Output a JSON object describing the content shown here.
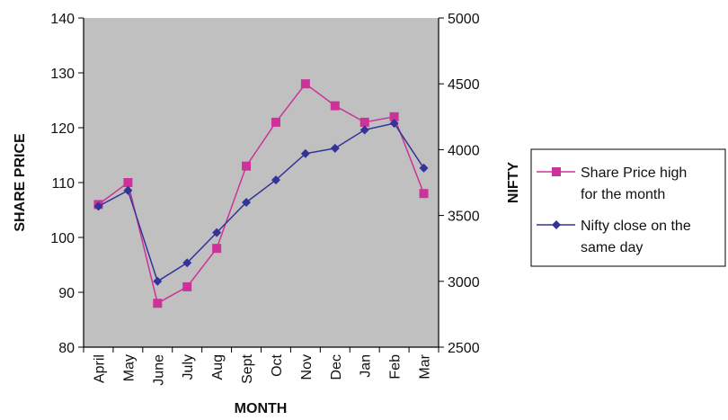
{
  "chart_data": {
    "type": "line",
    "title": "",
    "xlabel": "MONTH",
    "ylabel_left": "SHARE PRICE",
    "ylabel_right": "NIFTY",
    "categories": [
      "April",
      "May",
      "June",
      "July",
      "Aug",
      "Sept",
      "Oct",
      "Nov",
      "Dec",
      "Jan",
      "Feb",
      "Mar"
    ],
    "ylim_left": [
      80,
      140
    ],
    "yticks_left": [
      "80",
      "90",
      "100",
      "110",
      "120",
      "130",
      "140"
    ],
    "ylim_right": [
      2500,
      5000
    ],
    "yticks_right": [
      "2500",
      "3000",
      "3500",
      "4000",
      "4500",
      "5000"
    ],
    "grid": false,
    "legend_position": "right",
    "plot_background": "#c0c0c0",
    "series": [
      {
        "name_line1": "Share Price high",
        "name_line2": "for the month",
        "axis": "left",
        "color": "#cc3399",
        "marker": "square",
        "values": [
          106,
          110,
          88,
          91,
          98,
          113,
          121,
          128,
          124,
          121,
          122,
          108
        ]
      },
      {
        "name_line1": "Nifty close on the",
        "name_line2": "same day",
        "axis": "right",
        "color": "#333399",
        "marker": "diamond",
        "values": [
          3570,
          3690,
          3000,
          3140,
          3370,
          3600,
          3770,
          3970,
          4010,
          4150,
          4200,
          3860
        ]
      }
    ]
  }
}
